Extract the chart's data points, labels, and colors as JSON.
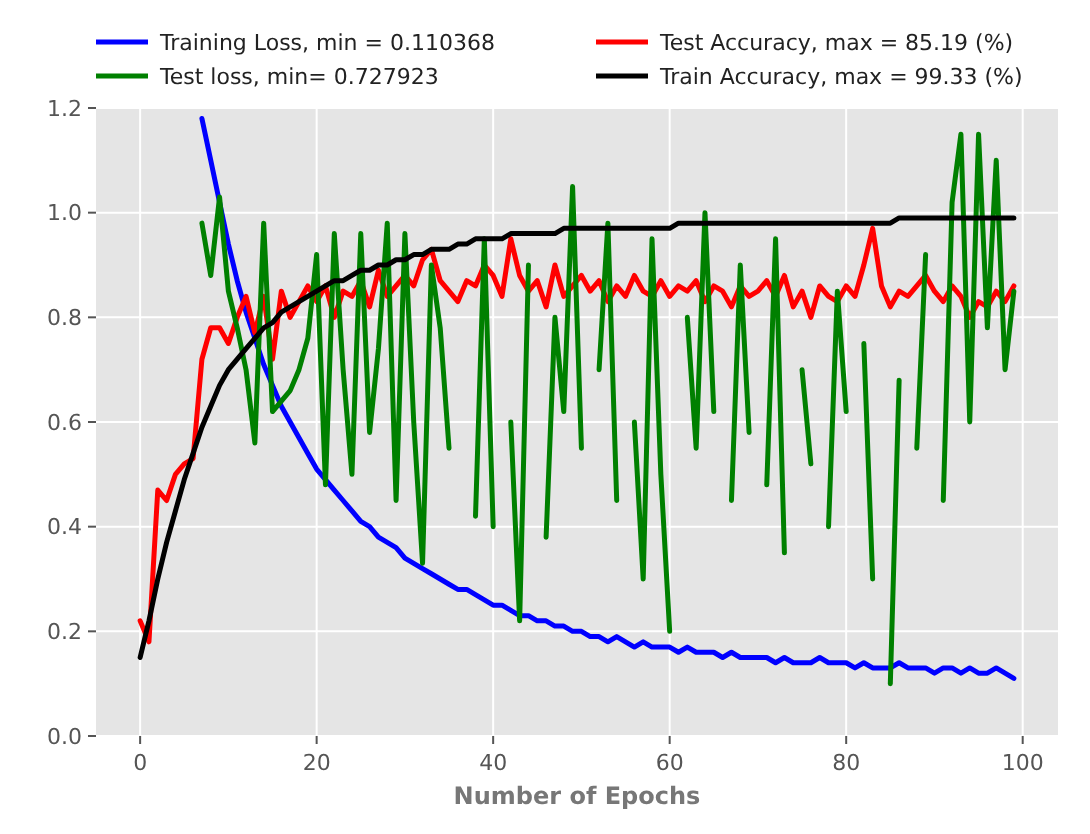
{
  "chart_data": {
    "type": "line",
    "xlabel": "Number of Epochs",
    "x": [
      0,
      1,
      2,
      3,
      4,
      5,
      6,
      7,
      8,
      9,
      10,
      11,
      12,
      13,
      14,
      15,
      16,
      17,
      18,
      19,
      20,
      21,
      22,
      23,
      24,
      25,
      26,
      27,
      28,
      29,
      30,
      31,
      32,
      33,
      34,
      35,
      36,
      37,
      38,
      39,
      40,
      41,
      42,
      43,
      44,
      45,
      46,
      47,
      48,
      49,
      50,
      51,
      52,
      53,
      54,
      55,
      56,
      57,
      58,
      59,
      60,
      61,
      62,
      63,
      64,
      65,
      66,
      67,
      68,
      69,
      70,
      71,
      72,
      73,
      74,
      75,
      76,
      77,
      78,
      79,
      80,
      81,
      82,
      83,
      84,
      85,
      86,
      87,
      88,
      89,
      90,
      91,
      92,
      93,
      94,
      95,
      96,
      97,
      98,
      99
    ],
    "series": [
      {
        "name": "Training Loss, min = 0.110368",
        "color": "#0000ff",
        "values": [
          null,
          null,
          null,
          null,
          null,
          null,
          null,
          1.18,
          1.1,
          1.02,
          0.94,
          0.87,
          0.81,
          0.76,
          0.71,
          0.67,
          0.63,
          0.6,
          0.57,
          0.54,
          0.51,
          0.49,
          0.47,
          0.45,
          0.43,
          0.41,
          0.4,
          0.38,
          0.37,
          0.36,
          0.34,
          0.33,
          0.32,
          0.31,
          0.3,
          0.29,
          0.28,
          0.28,
          0.27,
          0.26,
          0.25,
          0.25,
          0.24,
          0.23,
          0.23,
          0.22,
          0.22,
          0.21,
          0.21,
          0.2,
          0.2,
          0.19,
          0.19,
          0.18,
          0.19,
          0.18,
          0.17,
          0.18,
          0.17,
          0.17,
          0.17,
          0.16,
          0.17,
          0.16,
          0.16,
          0.16,
          0.15,
          0.16,
          0.15,
          0.15,
          0.15,
          0.15,
          0.14,
          0.15,
          0.14,
          0.14,
          0.14,
          0.15,
          0.14,
          0.14,
          0.14,
          0.13,
          0.14,
          0.13,
          0.13,
          0.13,
          0.14,
          0.13,
          0.13,
          0.13,
          0.12,
          0.13,
          0.13,
          0.12,
          0.13,
          0.12,
          0.12,
          0.13,
          0.12,
          0.11
        ]
      },
      {
        "name": "Test Accuracy, max = 85.19 (%)",
        "color": "#ff0000",
        "values": [
          0.22,
          0.18,
          0.47,
          0.45,
          0.5,
          0.52,
          0.53,
          0.72,
          0.78,
          0.78,
          0.75,
          0.8,
          0.84,
          0.77,
          0.84,
          0.72,
          0.85,
          0.8,
          0.83,
          0.86,
          0.83,
          0.86,
          0.8,
          0.85,
          0.84,
          0.87,
          0.82,
          0.89,
          0.84,
          0.86,
          0.88,
          0.86,
          0.91,
          0.93,
          0.87,
          0.85,
          0.83,
          0.87,
          0.86,
          0.9,
          0.88,
          0.84,
          0.95,
          0.88,
          0.85,
          0.87,
          0.82,
          0.9,
          0.84,
          0.86,
          0.88,
          0.85,
          0.87,
          0.83,
          0.86,
          0.84,
          0.88,
          0.85,
          0.84,
          0.87,
          0.84,
          0.86,
          0.85,
          0.87,
          0.83,
          0.86,
          0.85,
          0.82,
          0.86,
          0.84,
          0.85,
          0.87,
          0.84,
          0.88,
          0.82,
          0.85,
          0.8,
          0.86,
          0.84,
          0.83,
          0.86,
          0.84,
          0.9,
          0.97,
          0.86,
          0.82,
          0.85,
          0.84,
          0.86,
          0.88,
          0.85,
          0.83,
          0.86,
          0.84,
          0.8,
          0.83,
          0.82,
          0.85,
          0.83,
          0.86
        ]
      },
      {
        "name": "Test loss, min= 0.727923",
        "color": "#008000",
        "values": [
          null,
          null,
          null,
          null,
          null,
          null,
          null,
          0.98,
          0.88,
          1.03,
          0.85,
          0.78,
          0.7,
          0.56,
          0.98,
          0.62,
          0.64,
          0.66,
          0.7,
          0.76,
          0.92,
          0.48,
          0.96,
          0.7,
          0.5,
          0.96,
          0.58,
          0.74,
          0.98,
          0.45,
          0.96,
          0.6,
          0.33,
          0.9,
          0.78,
          0.55,
          null,
          null,
          0.42,
          0.95,
          0.4,
          null,
          0.6,
          0.22,
          0.9,
          null,
          0.38,
          0.8,
          0.62,
          1.05,
          0.55,
          null,
          0.7,
          0.98,
          0.45,
          null,
          0.6,
          0.3,
          0.95,
          0.5,
          0.2,
          null,
          0.8,
          0.55,
          1.0,
          0.62,
          null,
          0.45,
          0.9,
          0.58,
          null,
          0.48,
          0.95,
          0.35,
          null,
          0.7,
          0.52,
          null,
          0.4,
          0.85,
          0.62,
          null,
          0.75,
          0.3,
          null,
          0.1,
          0.68,
          null,
          0.55,
          0.92,
          null,
          0.45,
          1.02,
          1.15,
          0.6,
          1.15,
          0.78,
          1.1,
          0.7,
          0.85
        ]
      },
      {
        "name": "Train Accuracy, max = 99.33 (%)",
        "color": "#000000",
        "values": [
          0.15,
          0.22,
          0.3,
          0.37,
          0.43,
          0.49,
          0.54,
          0.59,
          0.63,
          0.67,
          0.7,
          0.72,
          0.74,
          0.76,
          0.78,
          0.79,
          0.81,
          0.82,
          0.83,
          0.84,
          0.85,
          0.86,
          0.87,
          0.87,
          0.88,
          0.89,
          0.89,
          0.9,
          0.9,
          0.91,
          0.91,
          0.92,
          0.92,
          0.93,
          0.93,
          0.93,
          0.94,
          0.94,
          0.95,
          0.95,
          0.95,
          0.95,
          0.96,
          0.96,
          0.96,
          0.96,
          0.96,
          0.96,
          0.97,
          0.97,
          0.97,
          0.97,
          0.97,
          0.97,
          0.97,
          0.97,
          0.97,
          0.97,
          0.97,
          0.97,
          0.97,
          0.98,
          0.98,
          0.98,
          0.98,
          0.98,
          0.98,
          0.98,
          0.98,
          0.98,
          0.98,
          0.98,
          0.98,
          0.98,
          0.98,
          0.98,
          0.98,
          0.98,
          0.98,
          0.98,
          0.98,
          0.98,
          0.98,
          0.98,
          0.98,
          0.98,
          0.99,
          0.99,
          0.99,
          0.99,
          0.99,
          0.99,
          0.99,
          0.99,
          0.99,
          0.99,
          0.99,
          0.99,
          0.99,
          0.99
        ]
      }
    ],
    "xlim": [
      -5,
      104
    ],
    "xticks": [
      0,
      20,
      40,
      60,
      80,
      100
    ],
    "ylim": [
      0,
      1.2
    ],
    "yticks": [
      {
        "value": 0,
        "label": "0.0"
      },
      {
        "value": 0.2,
        "label": "0.2"
      },
      {
        "value": 0.4,
        "label": "0.4"
      },
      {
        "value": 0.6,
        "label": "0.6"
      },
      {
        "value": 0.8,
        "label": "0.8"
      },
      {
        "value": 1.0,
        "label": "1.0"
      },
      {
        "value": 1.2,
        "label": "1.2"
      }
    ],
    "grid": true,
    "legend": "top",
    "line_style": "solid"
  }
}
